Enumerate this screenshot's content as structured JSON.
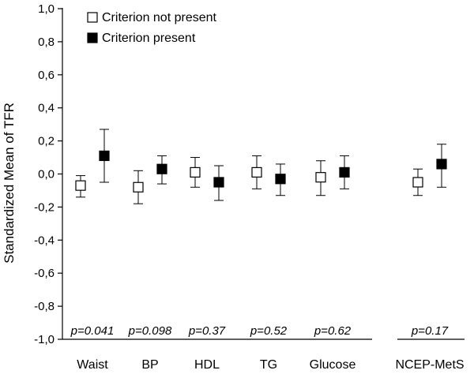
{
  "chart_data": {
    "type": "scatter",
    "title": "",
    "xlabel": "",
    "ylabel": "Standardized Mean of TFR",
    "ylim": [
      -1.0,
      1.0
    ],
    "yticks": [
      -1.0,
      -0.8,
      -0.6,
      -0.4,
      -0.2,
      0.0,
      0.2,
      0.4,
      0.6,
      0.8,
      1.0
    ],
    "ytick_labels": [
      "-1,0",
      "-0,8",
      "-0,6",
      "-0,4",
      "-0,2",
      "0,0",
      "0,2",
      "0,4",
      "0,6",
      "0,8",
      "1,0"
    ],
    "grid": false,
    "legend_position": "top-left",
    "categories": [
      "Waist",
      "BP",
      "HDL",
      "TG",
      "Glucose",
      "NCEP-MetS"
    ],
    "p_values": [
      "p=0.041",
      "p=0.098",
      "p=0.37",
      "p=0.52",
      "p=0.62",
      "p=0.17"
    ],
    "series": [
      {
        "name": "Criterion not present",
        "marker": "open-square",
        "values": [
          -0.07,
          -0.08,
          0.01,
          0.01,
          -0.02,
          -0.05
        ],
        "lower": [
          -0.14,
          -0.18,
          -0.08,
          -0.09,
          -0.13,
          -0.13
        ],
        "upper": [
          -0.01,
          0.02,
          0.1,
          0.11,
          0.08,
          0.03
        ]
      },
      {
        "name": "Criterion present",
        "marker": "filled-square",
        "values": [
          0.11,
          0.03,
          -0.05,
          -0.03,
          0.01,
          0.06
        ],
        "lower": [
          -0.05,
          -0.06,
          -0.16,
          -0.13,
          -0.09,
          -0.08
        ],
        "upper": [
          0.27,
          0.11,
          0.05,
          0.06,
          0.11,
          0.18
        ]
      }
    ]
  }
}
